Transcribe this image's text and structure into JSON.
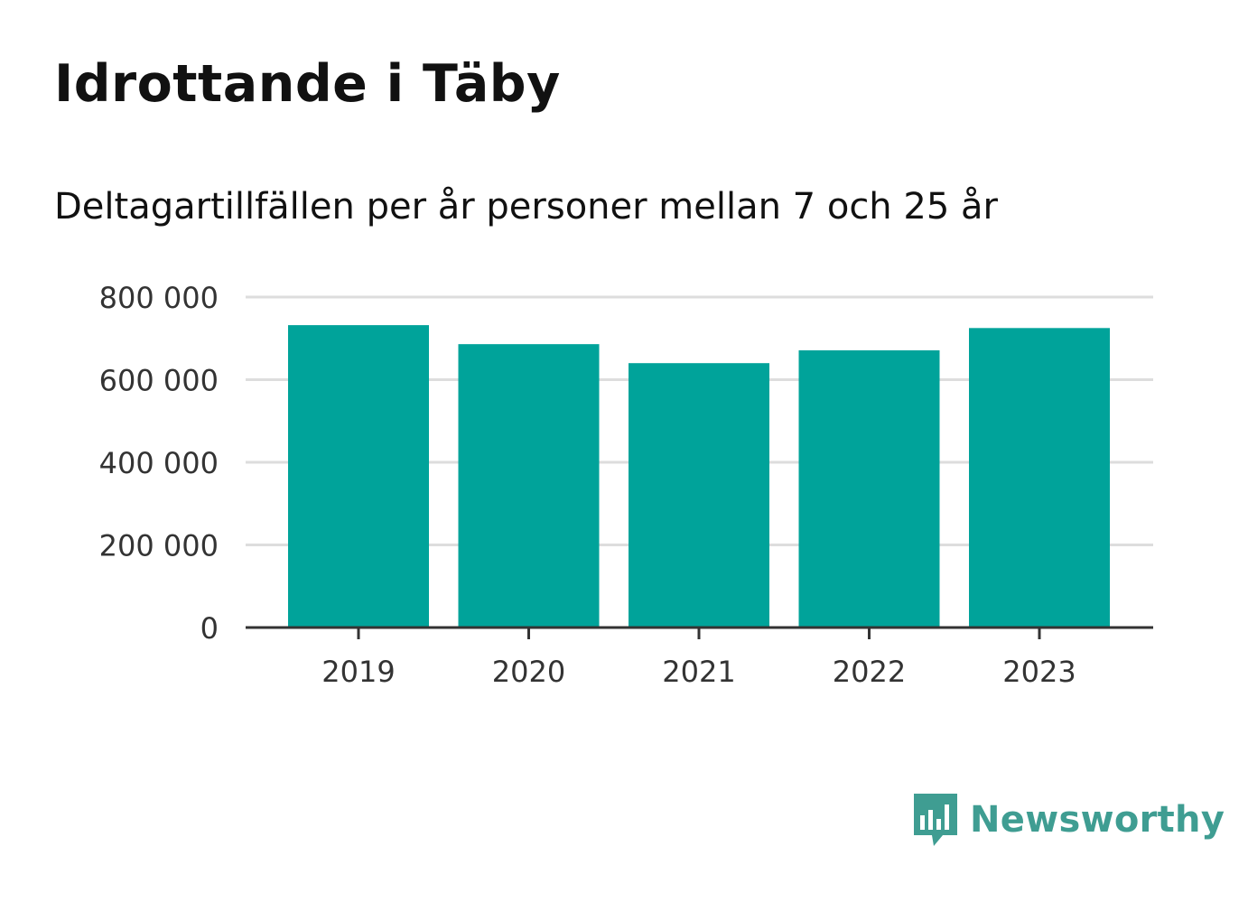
{
  "title": "Idrottande i Täby",
  "subtitle": "Deltagartillfällen per år personer mellan 7 och 25 år",
  "brand": {
    "name": "Newsworthy",
    "icon": "newsworthy-logo-icon",
    "color": "#3f9d92"
  },
  "chart_data": {
    "type": "bar",
    "categories": [
      "2019",
      "2020",
      "2021",
      "2022",
      "2023"
    ],
    "values": [
      732000,
      686000,
      640000,
      671000,
      725000
    ],
    "ylim": [
      0,
      800000
    ],
    "yticks": [
      0,
      200000,
      400000,
      600000,
      800000
    ],
    "ytick_labels": [
      "0",
      "200 000",
      "400 000",
      "600 000",
      "800 000"
    ],
    "grid": true,
    "bar_color": "#00a39a"
  }
}
